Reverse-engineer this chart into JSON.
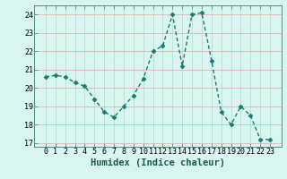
{
  "x": [
    0,
    1,
    2,
    3,
    4,
    5,
    6,
    7,
    8,
    9,
    10,
    11,
    12,
    13,
    14,
    15,
    16,
    17,
    18,
    19,
    20,
    21,
    22,
    23
  ],
  "y": [
    20.6,
    20.7,
    20.6,
    20.3,
    20.1,
    19.4,
    18.7,
    18.4,
    19.0,
    19.6,
    20.5,
    22.0,
    22.3,
    24.0,
    21.2,
    24.0,
    24.1,
    21.5,
    18.7,
    18.0,
    19.0,
    18.5,
    17.2,
    17.2
  ],
  "line_color": "#1a7a6e",
  "marker": "D",
  "markersize": 2.5,
  "linewidth": 1.0,
  "bg_color": "#d8f5f0",
  "grid_color": "#b8dcd6",
  "grid_color_red": "#e8b0b0",
  "xlabel": "Humidex (Indice chaleur)",
  "xlabel_fontsize": 7.5,
  "tick_fontsize": 6,
  "ylim": [
    16.8,
    24.5
  ],
  "yticks": [
    17,
    18,
    19,
    20,
    21,
    22,
    23,
    24
  ],
  "xticks": [
    0,
    1,
    2,
    3,
    4,
    5,
    6,
    7,
    8,
    9,
    10,
    11,
    12,
    13,
    14,
    15,
    16,
    17,
    18,
    19,
    20,
    21,
    22,
    23
  ],
  "spine_color": "#5a8a84"
}
